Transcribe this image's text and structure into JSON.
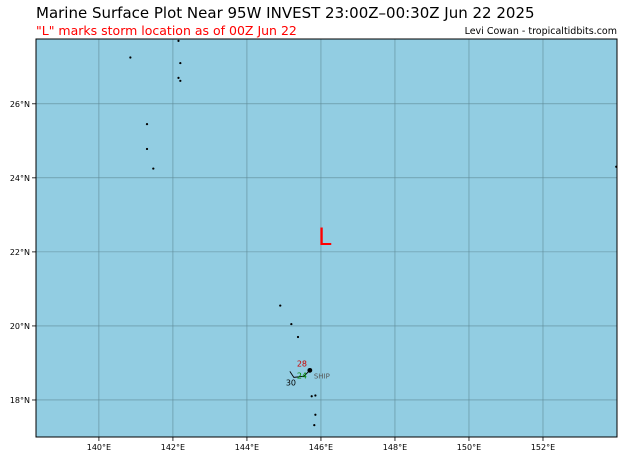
{
  "header": {
    "title": "Marine Surface Plot Near 95W INVEST 23:00Z–00:30Z Jun 22 2025",
    "subtitle": "\"L\" marks storm location as of 00Z Jun 22",
    "credit": "Levi Cowan - tropicaltidbits.com"
  },
  "colors": {
    "ocean": "#92cde2",
    "grid": "#5f8a96",
    "land": "#000000",
    "storm_marker": "#ff0000",
    "subtitle_text": "#ff0000",
    "obs_temperature": "#cc0000",
    "obs_dewpoint": "#008800",
    "obs_id": "#555555"
  },
  "map": {
    "projection": "plate-carree",
    "lon_range": [
      138.3,
      154.0
    ],
    "lat_range": [
      17.0,
      27.75
    ],
    "lon_ticks": [
      {
        "lon": 140,
        "label": "140°E"
      },
      {
        "lon": 142,
        "label": "142°E"
      },
      {
        "lon": 144,
        "label": "144°E"
      },
      {
        "lon": 146,
        "label": "146°E"
      },
      {
        "lon": 148,
        "label": "148°E"
      },
      {
        "lon": 150,
        "label": "150°E"
      },
      {
        "lon": 152,
        "label": "152°E"
      }
    ],
    "lat_ticks": [
      {
        "lat": 18,
        "label": "18°N"
      },
      {
        "lat": 20,
        "label": "20°N"
      },
      {
        "lat": 22,
        "label": "22°N"
      },
      {
        "lat": 24,
        "label": "24°N"
      },
      {
        "lat": 26,
        "label": "26°N"
      }
    ],
    "storm": {
      "label": "L",
      "lon": 146.1,
      "lat": 22.4
    },
    "islands": [
      {
        "lon": 142.15,
        "lat": 27.7
      },
      {
        "lon": 140.85,
        "lat": 27.25
      },
      {
        "lon": 142.2,
        "lat": 27.1
      },
      {
        "lon": 142.15,
        "lat": 26.7
      },
      {
        "lon": 142.2,
        "lat": 26.62
      },
      {
        "lon": 141.3,
        "lat": 25.45
      },
      {
        "lon": 141.3,
        "lat": 24.78
      },
      {
        "lon": 141.47,
        "lat": 24.25
      },
      {
        "lon": 153.98,
        "lat": 24.3
      },
      {
        "lon": 144.9,
        "lat": 20.55
      },
      {
        "lon": 145.2,
        "lat": 20.05
      },
      {
        "lon": 145.38,
        "lat": 19.7
      },
      {
        "lon": 145.7,
        "lat": 18.78
      },
      {
        "lon": 145.85,
        "lat": 18.12
      },
      {
        "lon": 145.75,
        "lat": 18.1
      },
      {
        "lon": 145.85,
        "lat": 17.6
      },
      {
        "lon": 145.82,
        "lat": 17.32
      }
    ],
    "observation": {
      "lon": 145.7,
      "lat": 18.8,
      "temperature": "28",
      "dewpoint": "24",
      "pressure": "30",
      "station_id": "SHIP"
    }
  }
}
